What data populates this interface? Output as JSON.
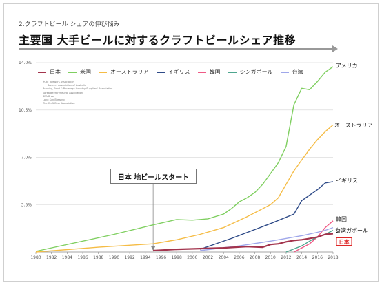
{
  "header": {
    "subtitle": "2.クラフトビール シェアの伸び悩み",
    "title": "主要国 大手ビールに対するクラフトビールシェア推移"
  },
  "sources": [
    "出典：Brewers Association",
    "Brewers Association of Australia",
    "Brewing, Food & Beverage Industry Suppliers' Association",
    "Korea Beerpreneurial Association",
    "SEA Brew",
    "Long Sun Brewing",
    "The Craft Beer Association"
  ],
  "callout": {
    "text": "日本 地ビールスタート",
    "year": 1995
  },
  "chart_data": {
    "type": "line",
    "xlim": [
      1980,
      2018
    ],
    "ylim": [
      0,
      14
    ],
    "x_ticks": [
      1980,
      1982,
      1984,
      1986,
      1988,
      1990,
      1992,
      1994,
      1996,
      1998,
      2000,
      2002,
      2004,
      2006,
      2008,
      2010,
      2012,
      2014,
      2016,
      2018
    ],
    "y_ticks": [
      {
        "value": 3.5,
        "label": "3.5%"
      },
      {
        "value": 7.0,
        "label": "7.0%"
      },
      {
        "value": 10.5,
        "label": "10.5%"
      },
      {
        "value": 14.0,
        "label": "14.0%"
      }
    ],
    "grid": true,
    "legend": "top",
    "series": [
      {
        "name": "日本",
        "end_label": "日本",
        "color": "#a3344d",
        "highlight": true,
        "points": [
          [
            1995,
            0.1
          ],
          [
            1998,
            0.2
          ],
          [
            2001,
            0.25
          ],
          [
            2004,
            0.3
          ],
          [
            2007,
            0.4
          ],
          [
            2009,
            0.35
          ],
          [
            2010,
            0.55
          ],
          [
            2011,
            0.6
          ],
          [
            2012,
            0.75
          ],
          [
            2013,
            0.85
          ],
          [
            2014,
            0.9
          ],
          [
            2015,
            1.0
          ],
          [
            2016,
            1.1
          ],
          [
            2017,
            1.3
          ],
          [
            2018,
            1.35
          ]
        ]
      },
      {
        "name": "米国",
        "end_label": "アメリカ",
        "color": "#7fcf60",
        "points": [
          [
            1980,
            0.05
          ],
          [
            1990,
            1.3
          ],
          [
            1995,
            2.0
          ],
          [
            1998,
            2.4
          ],
          [
            2000,
            2.35
          ],
          [
            2002,
            2.45
          ],
          [
            2004,
            2.8
          ],
          [
            2005,
            3.2
          ],
          [
            2006,
            3.7
          ],
          [
            2007,
            4.0
          ],
          [
            2008,
            4.4
          ],
          [
            2009,
            5.0
          ],
          [
            2010,
            5.8
          ],
          [
            2011,
            6.6
          ],
          [
            2012,
            7.8
          ],
          [
            2013,
            10.9
          ],
          [
            2014,
            12.1
          ],
          [
            2015,
            12.0
          ],
          [
            2016,
            12.6
          ],
          [
            2017,
            13.3
          ],
          [
            2018,
            13.7
          ]
        ]
      },
      {
        "name": "オーストラリア",
        "end_label": "オーストラリア",
        "color": "#f5bc45",
        "points": [
          [
            1980,
            0.0
          ],
          [
            1988,
            0.35
          ],
          [
            1995,
            0.6
          ],
          [
            1998,
            0.9
          ],
          [
            2001,
            1.3
          ],
          [
            2004,
            1.8
          ],
          [
            2007,
            2.6
          ],
          [
            2010,
            3.5
          ],
          [
            2011,
            4.0
          ],
          [
            2012,
            5.0
          ],
          [
            2013,
            6.0
          ],
          [
            2014,
            6.8
          ],
          [
            2015,
            7.6
          ],
          [
            2016,
            8.3
          ],
          [
            2017,
            8.9
          ],
          [
            2018,
            9.4
          ]
        ]
      },
      {
        "name": "イギリス",
        "end_label": "イギリス",
        "color": "#2f4b88",
        "points": [
          [
            2001,
            0.2
          ],
          [
            2005,
            1.0
          ],
          [
            2010,
            2.1
          ],
          [
            2013,
            2.8
          ],
          [
            2014,
            3.8
          ],
          [
            2015,
            4.2
          ],
          [
            2016,
            4.6
          ],
          [
            2017,
            5.1
          ],
          [
            2018,
            5.2
          ]
        ]
      },
      {
        "name": "韓国",
        "end_label": "韓国",
        "color": "#ef5a86",
        "points": [
          [
            2013,
            0.0
          ],
          [
            2015,
            0.6
          ],
          [
            2016,
            1.1
          ],
          [
            2017,
            1.8
          ],
          [
            2018,
            2.3
          ]
        ]
      },
      {
        "name": "シンガポール",
        "end_label": "シンガポール",
        "color": "#4ea68f",
        "points": [
          [
            2012,
            0.0
          ],
          [
            2014,
            0.45
          ],
          [
            2015,
            0.8
          ],
          [
            2016,
            1.1
          ],
          [
            2017,
            1.3
          ],
          [
            2018,
            1.6
          ]
        ]
      },
      {
        "name": "台湾",
        "end_label": "台湾",
        "color": "#9fa7ea",
        "points": [
          [
            2001,
            0.1
          ],
          [
            2006,
            0.45
          ],
          [
            2010,
            0.8
          ],
          [
            2014,
            1.2
          ],
          [
            2016,
            1.45
          ],
          [
            2017,
            1.6
          ],
          [
            2018,
            1.8
          ]
        ]
      }
    ]
  }
}
